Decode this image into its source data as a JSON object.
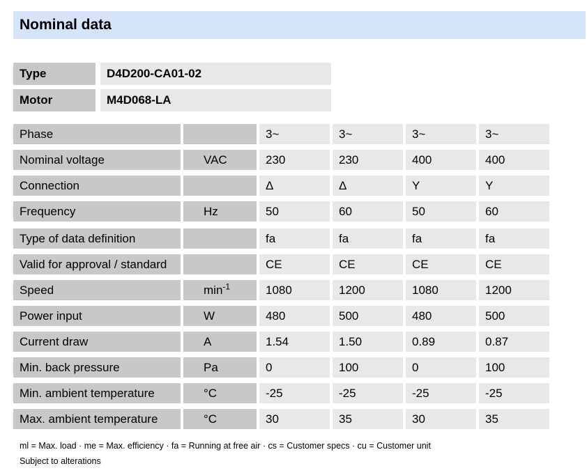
{
  "page": {
    "title": "Nominal data",
    "footnote": "ml = Max. load · me = Max. efficiency · fa = Running at free air · cs = Customer specs · cu = Customer unit",
    "disclaimer": "Subject to alterations"
  },
  "identity": {
    "rows": [
      {
        "label": "Type",
        "value": "D4D200-CA01-02"
      },
      {
        "label": "Motor",
        "value": "M4D068-LA"
      }
    ]
  },
  "nominal_table": {
    "columns": 4,
    "groups": [
      {
        "rows": [
          {
            "label": "Phase",
            "unit": "",
            "values": [
              "3~",
              "3~",
              "3~",
              "3~"
            ]
          },
          {
            "label": "Nominal voltage",
            "unit": "VAC",
            "values": [
              "230",
              "230",
              "400",
              "400"
            ]
          },
          {
            "label": "Connection",
            "unit": "",
            "values": [
              "Δ",
              "Δ",
              "Y",
              "Y"
            ]
          },
          {
            "label": "Frequency",
            "unit": "Hz",
            "values": [
              "50",
              "60",
              "50",
              "60"
            ]
          }
        ]
      },
      {
        "rows": [
          {
            "label": "Type of data definition",
            "unit": "",
            "values": [
              "fa",
              "fa",
              "fa",
              "fa"
            ]
          },
          {
            "label": "Valid for approval / standard",
            "unit": "",
            "values": [
              "CE",
              "CE",
              "CE",
              "CE"
            ]
          },
          {
            "label": "Speed",
            "unit": "min",
            "unit_sup": "-1",
            "values": [
              "1080",
              "1200",
              "1080",
              "1200"
            ]
          },
          {
            "label": "Power input",
            "unit": "W",
            "values": [
              "480",
              "500",
              "480",
              "500"
            ]
          },
          {
            "label": "Current draw",
            "unit": "A",
            "values": [
              "1.54",
              "1.50",
              "0.89",
              "0.87"
            ]
          },
          {
            "label": "Min. back pressure",
            "unit": "Pa",
            "values": [
              "0",
              "100",
              "0",
              "100"
            ]
          },
          {
            "label": "Min. ambient temperature",
            "unit": "°C",
            "values": [
              "-25",
              "-25",
              "-25",
              "-25"
            ]
          },
          {
            "label": "Max. ambient temperature",
            "unit": "°C",
            "values": [
              "30",
              "35",
              "30",
              "35"
            ]
          }
        ]
      }
    ]
  },
  "colors": {
    "header_bg": "#d6e4f9",
    "label_cell_bg": "#c8c8c8",
    "value_cell_bg": "#e8e8e8",
    "text": "#000000"
  }
}
